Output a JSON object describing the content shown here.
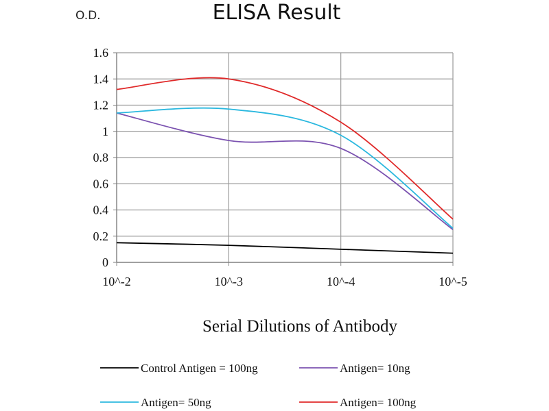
{
  "chart_data": {
    "type": "line",
    "title": "ELISA Result",
    "ylabel": "O.D.",
    "xlabel": "Serial Dilutions of Antibody",
    "categories": [
      "10^-2",
      "10^-3",
      "10^-4",
      "10^-5"
    ],
    "ylim": [
      0,
      1.6
    ],
    "yticks": [
      "0",
      "0.2",
      "0.4",
      "0.6",
      "0.8",
      "1",
      "1.2",
      "1.4",
      "1.6"
    ],
    "grid": true,
    "legend_placement": "bottom",
    "series": [
      {
        "name": "Control Antigen = 100ng",
        "color": "#000000",
        "values": [
          0.15,
          0.13,
          0.1,
          0.07
        ]
      },
      {
        "name": "Antigen= 10ng",
        "color": "#7b52b0",
        "values": [
          1.14,
          0.93,
          0.87,
          0.25
        ]
      },
      {
        "name": "Antigen= 50ng",
        "color": "#2bb8df",
        "values": [
          1.14,
          1.17,
          0.97,
          0.26
        ]
      },
      {
        "name": "Antigen= 100ng",
        "color": "#e02a2a",
        "values": [
          1.32,
          1.4,
          1.07,
          0.33
        ]
      }
    ]
  }
}
